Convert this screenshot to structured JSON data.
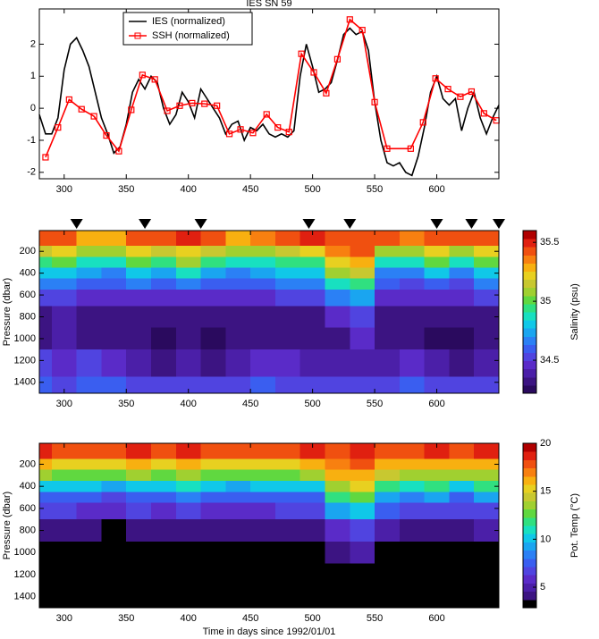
{
  "chart_data": [
    {
      "type": "line",
      "title": "IES SN 59",
      "xlim": [
        280,
        650
      ],
      "xticks": [
        300,
        350,
        400,
        450,
        500,
        550,
        600
      ],
      "ylim": [
        -2.2,
        3.1
      ],
      "yticks": [
        -2,
        -1,
        0,
        1,
        2
      ],
      "legend": "upper left",
      "series": [
        {
          "name": "IES (normalized)",
          "color": "#000000",
          "x": [
            280,
            285,
            290,
            295,
            300,
            305,
            310,
            315,
            320,
            325,
            330,
            335,
            340,
            345,
            350,
            355,
            360,
            365,
            370,
            375,
            380,
            385,
            390,
            395,
            400,
            405,
            410,
            415,
            420,
            425,
            430,
            435,
            440,
            445,
            450,
            455,
            460,
            465,
            470,
            475,
            480,
            485,
            490,
            495,
            500,
            505,
            510,
            515,
            520,
            525,
            530,
            535,
            540,
            545,
            550,
            555,
            560,
            565,
            570,
            575,
            580,
            585,
            590,
            595,
            600,
            605,
            610,
            615,
            620,
            625,
            630,
            635,
            640,
            645,
            650
          ],
          "values": [
            -0.2,
            -0.8,
            -0.8,
            -0.3,
            1.2,
            2,
            2.2,
            1.8,
            1.3,
            0.5,
            -0.3,
            -0.8,
            -1.4,
            -1.2,
            -0.5,
            0.5,
            0.9,
            0.6,
            1,
            0.8,
            0,
            -0.5,
            -0.2,
            0.5,
            0.2,
            -0.3,
            0.6,
            0.3,
            0,
            -0.3,
            -0.8,
            -0.5,
            -0.4,
            -1,
            -0.6,
            -0.7,
            -0.5,
            -0.8,
            -0.9,
            -0.8,
            -0.9,
            -0.7,
            1,
            2,
            1.3,
            0.5,
            0.6,
            0.8,
            1.5,
            2.3,
            2.5,
            2.3,
            2.4,
            1.8,
            0.2,
            -1,
            -1.7,
            -1.8,
            -1.7,
            -2,
            -2.1,
            -1.5,
            -0.6,
            0.5,
            1,
            0.3,
            0.1,
            0.3,
            -0.7,
            0,
            0.5,
            -0.3,
            -0.8,
            -0.3,
            0.1
          ]
        },
        {
          "name": "SSH (normalized)",
          "color": "#ff0000",
          "marker": "square",
          "x": [
            285,
            295,
            304,
            314,
            324,
            334,
            344,
            354,
            363,
            373,
            383,
            393,
            403,
            413,
            423,
            433,
            442,
            452,
            463,
            472,
            481,
            491,
            501,
            511,
            520,
            530,
            540,
            550,
            560,
            579,
            589,
            599,
            609,
            619,
            628,
            638,
            648
          ],
          "values": [
            -1.53,
            -0.6,
            0.27,
            -0.03,
            -0.25,
            -0.85,
            -1.34,
            -0.05,
            1.04,
            0.9,
            -0.08,
            0.08,
            0.16,
            0.14,
            0.08,
            -0.8,
            -0.66,
            -0.77,
            -0.19,
            -0.6,
            -0.74,
            1.7,
            1.12,
            0.47,
            1.53,
            2.77,
            2.44,
            0.19,
            -1.26,
            -1.26,
            -0.44,
            0.93,
            0.6,
            0.36,
            0.52,
            -0.16,
            -0.38
          ]
        }
      ]
    },
    {
      "type": "contour",
      "ylabel": "Pressure (dbar)",
      "xlim": [
        280,
        650
      ],
      "xticks": [
        300,
        350,
        400,
        450,
        500,
        550,
        600
      ],
      "ylim": [
        1500,
        10
      ],
      "yticks": [
        200,
        400,
        600,
        800,
        1000,
        1200,
        1400
      ],
      "x": [
        280,
        300,
        320,
        340,
        360,
        380,
        400,
        420,
        440,
        460,
        480,
        500,
        520,
        540,
        560,
        580,
        600,
        620,
        640
      ],
      "y": [
        100,
        200,
        300,
        400,
        500,
        600,
        800,
        1000,
        1200,
        1500
      ],
      "z": [
        [
          35.4,
          35.4,
          35.3,
          35.3,
          35.45,
          35.4,
          35.5,
          35.4,
          35.3,
          35.35,
          35.4,
          35.5,
          35.4,
          35.45,
          35.4,
          35.35,
          35.45,
          35.4,
          35.45
        ],
        [
          35.15,
          35.2,
          35.1,
          35.05,
          35.2,
          35.15,
          35.25,
          35.15,
          35.1,
          35.1,
          35.15,
          35.2,
          35.35,
          35.4,
          35.1,
          35.05,
          35.25,
          35.1,
          35.2
        ],
        [
          34.95,
          35,
          34.9,
          34.85,
          35,
          34.95,
          35.05,
          34.95,
          34.9,
          34.9,
          34.95,
          34.95,
          35.25,
          35.3,
          34.9,
          34.85,
          35,
          34.85,
          35
        ],
        [
          34.8,
          34.8,
          34.75,
          34.7,
          34.8,
          34.75,
          34.85,
          34.75,
          34.7,
          34.75,
          34.8,
          34.8,
          35.05,
          35.15,
          34.7,
          34.7,
          34.8,
          34.7,
          34.8
        ],
        [
          34.65,
          34.65,
          34.6,
          34.6,
          34.65,
          34.6,
          34.65,
          34.6,
          34.6,
          34.6,
          34.65,
          34.65,
          34.85,
          34.95,
          34.6,
          34.55,
          34.6,
          34.55,
          34.65
        ],
        [
          34.5,
          34.5,
          34.45,
          34.45,
          34.45,
          34.45,
          34.45,
          34.45,
          34.45,
          34.45,
          34.5,
          34.5,
          34.65,
          34.75,
          34.45,
          34.45,
          34.45,
          34.45,
          34.5
        ],
        [
          34.35,
          34.4,
          34.35,
          34.35,
          34.3,
          34.3,
          34.3,
          34.3,
          34.3,
          34.35,
          34.35,
          34.35,
          34.45,
          34.55,
          34.35,
          34.3,
          34.3,
          34.3,
          34.35
        ],
        [
          34.35,
          34.4,
          34.35,
          34.35,
          34.3,
          34.25,
          34.3,
          34.25,
          34.3,
          34.35,
          34.35,
          34.3,
          34.35,
          34.45,
          34.35,
          34.3,
          34.25,
          34.25,
          34.3
        ],
        [
          34.5,
          34.45,
          34.5,
          34.45,
          34.4,
          34.35,
          34.4,
          34.35,
          34.4,
          34.45,
          34.45,
          34.4,
          34.4,
          34.4,
          34.4,
          34.45,
          34.4,
          34.35,
          34.4
        ],
        [
          34.6,
          34.55,
          34.6,
          34.6,
          34.5,
          34.5,
          34.55,
          34.5,
          34.55,
          34.6,
          34.55,
          34.5,
          34.5,
          34.5,
          34.55,
          34.6,
          34.5,
          34.5,
          34.5
        ]
      ],
      "clim": [
        34.22,
        35.6
      ],
      "cticks": [
        34.5,
        35,
        35.5
      ],
      "colorbar_label": "Salinity (psu)",
      "colors": [
        "#2a0a5e",
        "#3c1482",
        "#4b1fa8",
        "#5a2bc8",
        "#5044e0",
        "#3a5ef0",
        "#2b80f5",
        "#1aa5f0",
        "#10c8e8",
        "#18e0c0",
        "#30e080",
        "#60d840",
        "#a0d030",
        "#c8c830",
        "#e8d020",
        "#f8b010",
        "#f88010",
        "#f05010",
        "#e02010",
        "#b00000"
      ],
      "markers": [
        310,
        365,
        410,
        497,
        530,
        600,
        628,
        650
      ]
    },
    {
      "type": "contour",
      "ylabel": "Pressure (dbar)",
      "xlabel": "Time in days since 1992/01/01",
      "xlim": [
        280,
        650
      ],
      "xticks": [
        300,
        350,
        400,
        450,
        500,
        550,
        600
      ],
      "ylim": [
        1500,
        10
      ],
      "yticks": [
        200,
        400,
        600,
        800,
        1000,
        1200,
        1400
      ],
      "x": [
        280,
        300,
        320,
        340,
        360,
        380,
        400,
        420,
        440,
        460,
        480,
        500,
        520,
        540,
        560,
        580,
        600,
        620,
        640
      ],
      "y": [
        100,
        200,
        300,
        400,
        500,
        600,
        800,
        1000,
        1200,
        1500
      ],
      "z": [
        [
          18.5,
          18,
          17.5,
          17.5,
          18.5,
          18,
          19,
          18,
          17.5,
          18,
          18,
          19,
          18,
          18.5,
          18,
          17.5,
          19,
          18,
          19
        ],
        [
          16,
          15.5,
          15,
          15,
          16,
          15.5,
          16.5,
          15.5,
          15,
          15.5,
          15.5,
          16,
          17,
          17.5,
          16.5,
          16,
          16.5,
          16,
          16.5
        ],
        [
          13.5,
          13,
          12.5,
          12.5,
          13.5,
          13,
          14,
          13,
          12.5,
          12.5,
          13,
          13.5,
          16,
          16.5,
          14.5,
          13.5,
          14,
          13.5,
          14
        ],
        [
          10.5,
          10.5,
          10,
          9.5,
          10.5,
          10,
          11,
          10,
          9.5,
          10,
          10,
          10.5,
          14,
          15,
          12,
          11,
          11.5,
          10.5,
          11.5
        ],
        [
          8,
          8,
          7.5,
          7,
          8,
          7.5,
          8.5,
          7.5,
          7.5,
          7.5,
          8,
          8,
          11.5,
          13,
          9.5,
          8.5,
          9,
          8,
          9
        ],
        [
          6.5,
          6.5,
          6,
          5.5,
          6.5,
          6,
          6.5,
          6,
          6,
          6,
          6.5,
          6.5,
          9,
          10.5,
          7.5,
          6.5,
          7,
          6.5,
          7
        ],
        [
          4.2,
          4.2,
          4,
          3.6,
          4.5,
          4,
          4.3,
          4,
          4,
          4,
          4.2,
          4.2,
          6,
          7,
          5,
          4.5,
          4.5,
          4.3,
          4.6
        ],
        [
          3.2,
          3.2,
          3.2,
          3,
          3.3,
          3.2,
          3.3,
          3.2,
          3.2,
          3.2,
          3.3,
          3.3,
          4.2,
          5,
          3.4,
          3.3,
          3.3,
          3.3,
          3.3
        ],
        [
          3,
          3,
          3,
          3,
          3,
          3,
          3,
          3,
          3,
          3,
          3,
          3,
          3.2,
          3.6,
          3,
          3,
          3,
          3,
          3
        ],
        [
          2.8,
          2.8,
          2.8,
          2.8,
          2.8,
          2.8,
          2.8,
          2.8,
          2.8,
          2.8,
          2.8,
          2.8,
          2.8,
          2.8,
          2.8,
          2.8,
          2.8,
          2.8,
          2.8
        ]
      ],
      "clim": [
        2.86,
        20
      ],
      "cticks": [
        5,
        10,
        15,
        20
      ],
      "colorbar_label": "Pot. Temp (°C)",
      "colors": [
        "#000000",
        "#3c1482",
        "#4b1fa8",
        "#5a2bc8",
        "#5044e0",
        "#3a5ef0",
        "#2b80f5",
        "#1aa5f0",
        "#10c8e8",
        "#18e0c0",
        "#30e080",
        "#60d840",
        "#a0d030",
        "#c8c830",
        "#e8d020",
        "#f8b010",
        "#f88010",
        "#f05010",
        "#e02010",
        "#b00000"
      ]
    }
  ]
}
